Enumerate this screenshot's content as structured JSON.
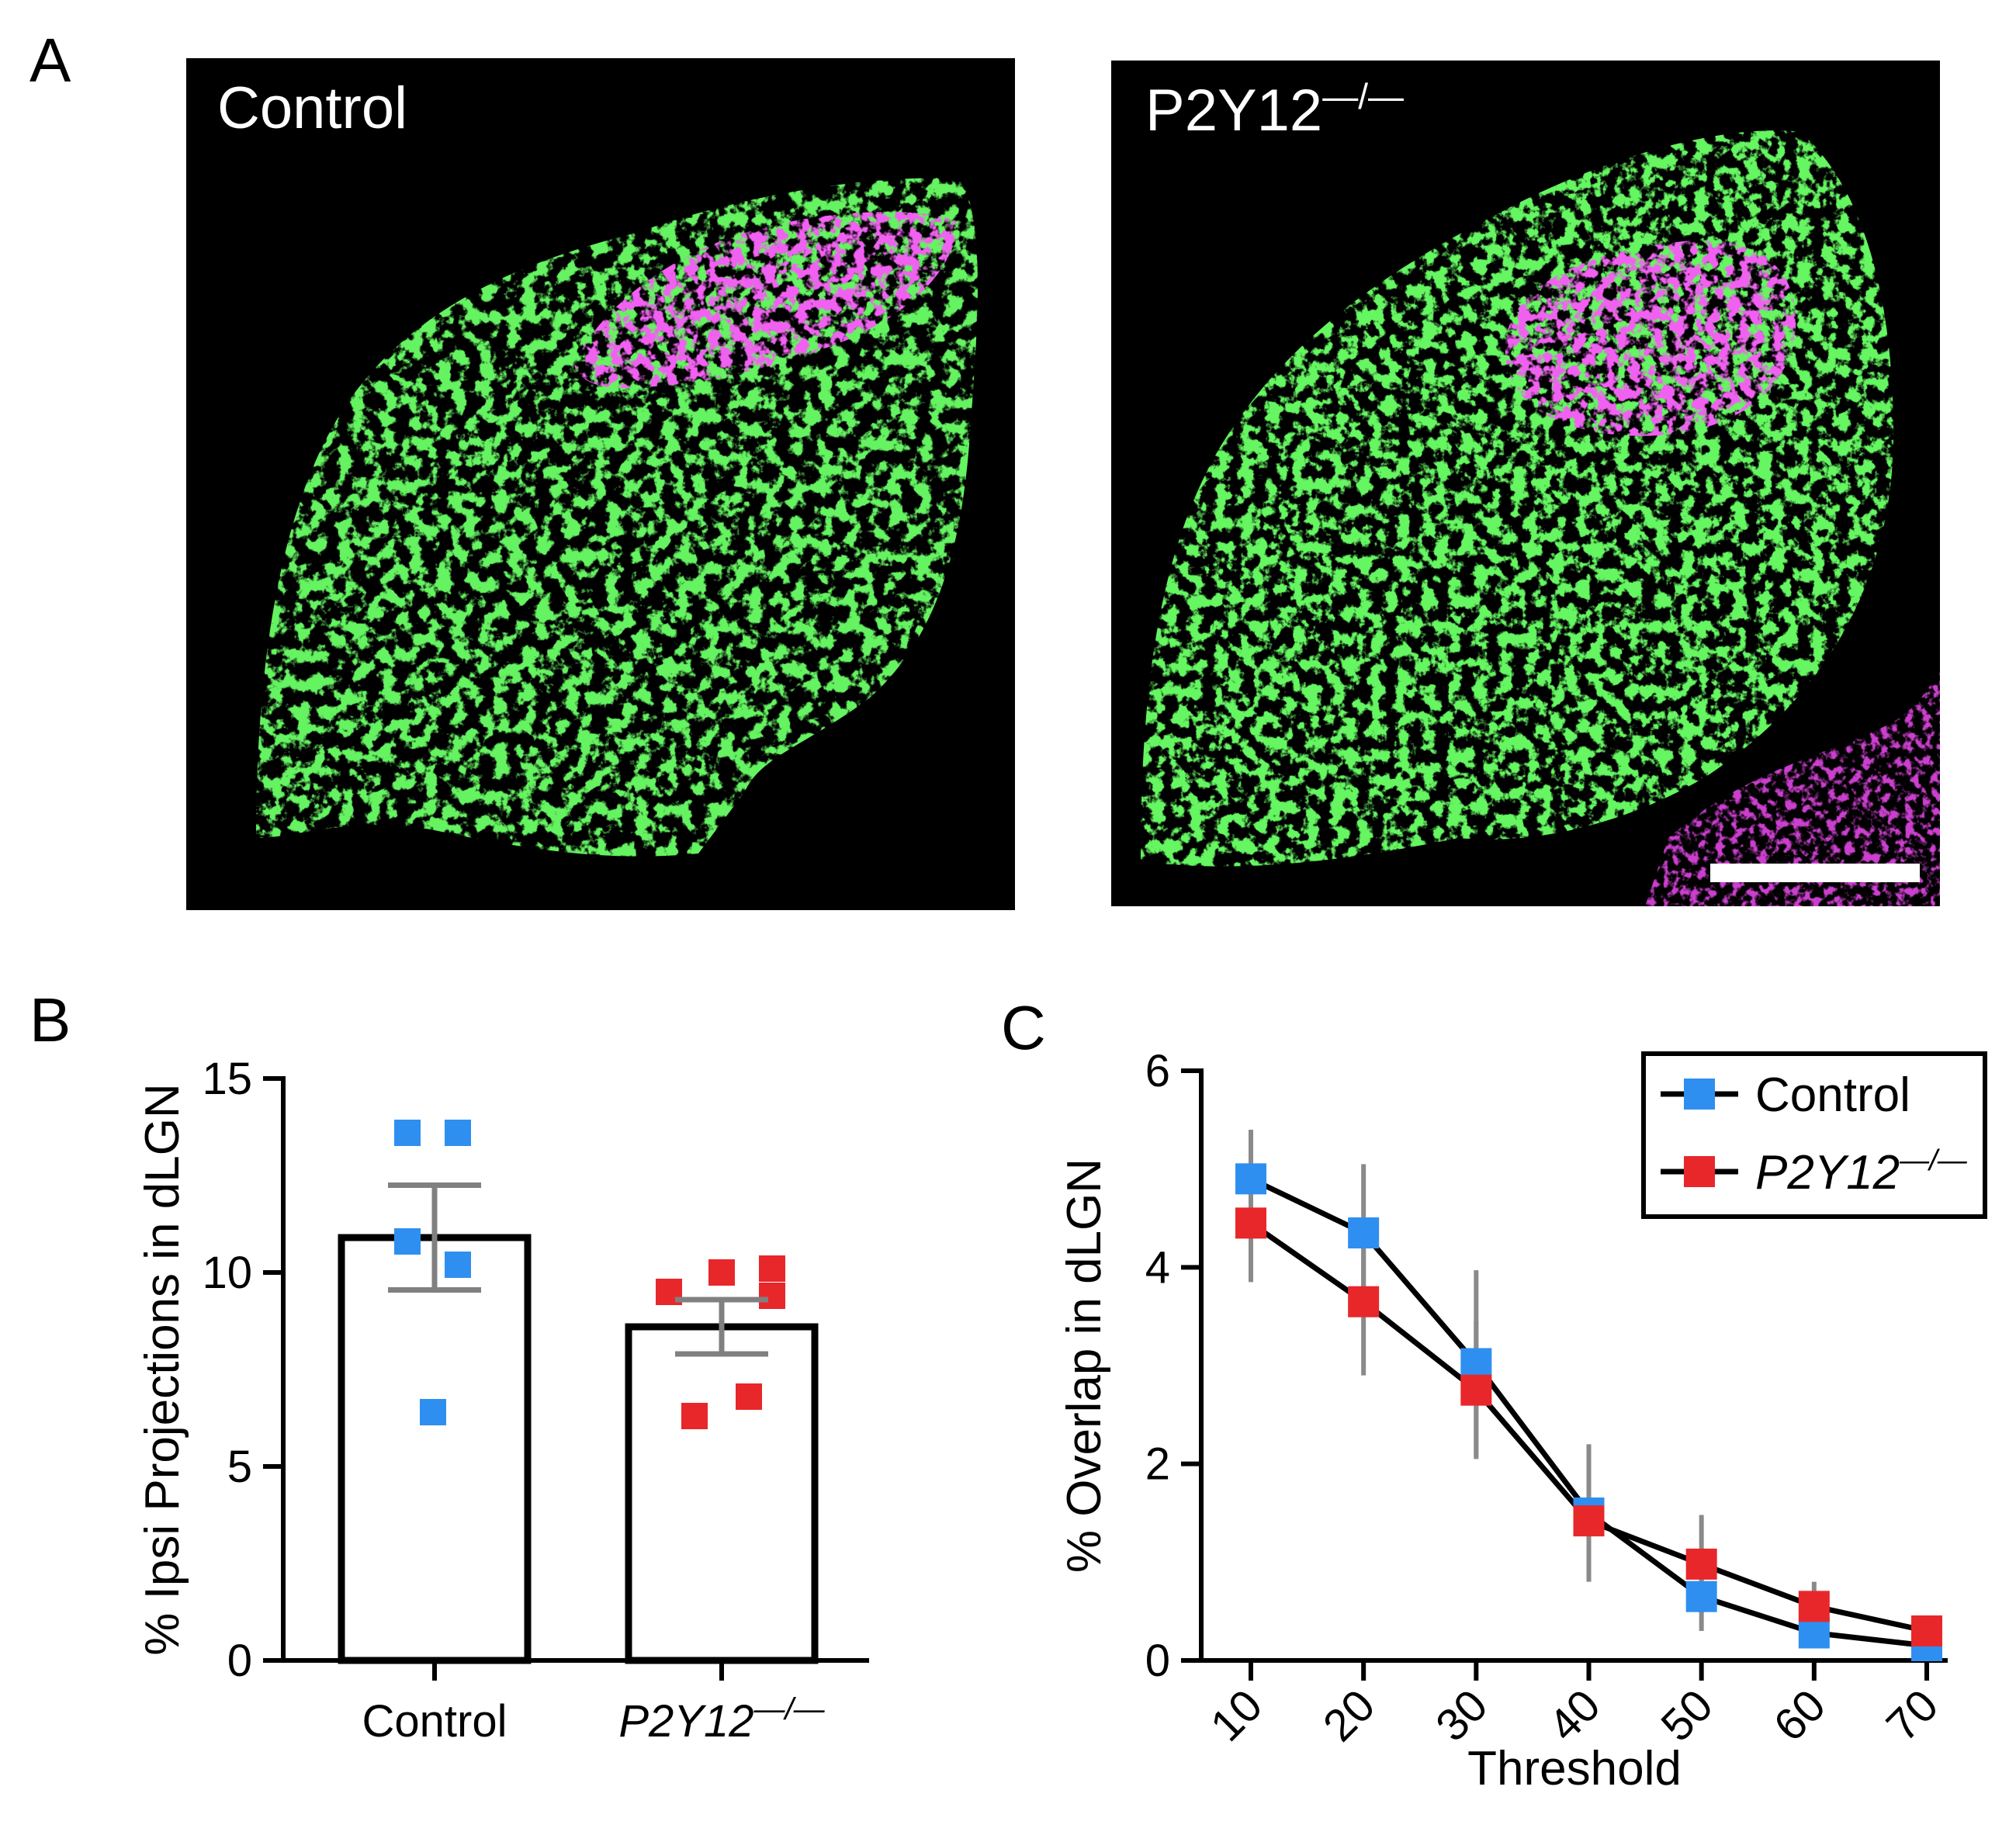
{
  "panels": {
    "a": {
      "letter": "A",
      "images": [
        {
          "label": "Control",
          "sup": ""
        },
        {
          "label": "P2Y12",
          "sup": "—/—"
        }
      ]
    },
    "b": {
      "letter": "B"
    },
    "c": {
      "letter": "C"
    }
  },
  "colors": {
    "control": "#2f8ff0",
    "p2y12": "#e8272b",
    "error_bar_b": "#808080",
    "error_bar_c": "#8a8a8a",
    "green_stain": "#22e61f",
    "magenta_stain": "#e020e0"
  },
  "chart_data": [
    {
      "type": "bar",
      "panel": "B",
      "xlabel": "",
      "ylabel": "% Ipsi Projections in dLGN",
      "ylim": [
        0,
        15
      ],
      "yticks": [
        "0",
        "5",
        "10",
        "15"
      ],
      "categories": [
        {
          "label": "Control",
          "sup": "",
          "italic": false
        },
        {
          "label": "P2Y12",
          "sup": "—/—",
          "italic": true
        }
      ],
      "values": [
        10.9,
        8.6
      ],
      "errors": [
        1.35,
        0.7
      ],
      "points": [
        {
          "series": "Control",
          "values": [
            13.6,
            13.6,
            10.8,
            10.2,
            6.4
          ]
        },
        {
          "series": "P2Y12—/—",
          "values": [
            9.5,
            10.0,
            10.1,
            9.4,
            6.8,
            6.3
          ]
        }
      ]
    },
    {
      "type": "line",
      "panel": "C",
      "xlabel": "Threshold",
      "ylabel": "% Overlap in dLGN",
      "x": [
        10,
        20,
        30,
        40,
        50,
        60,
        70
      ],
      "xticks": [
        "10",
        "20",
        "30",
        "40",
        "50",
        "60",
        "70"
      ],
      "ylim": [
        0,
        6
      ],
      "yticks": [
        "0",
        "2",
        "4",
        "6"
      ],
      "legend_position": "top-right",
      "series": [
        {
          "name": "Control",
          "sup": "",
          "italic": false,
          "values": [
            4.9,
            4.35,
            3.02,
            1.5,
            0.65,
            0.28,
            0.15
          ],
          "errors": [
            0.5,
            0.7,
            0.95,
            0.7,
            0.35,
            0.15,
            0.1
          ]
        },
        {
          "name": "P2Y12",
          "sup": "—/—",
          "italic": true,
          "values": [
            4.45,
            3.65,
            2.75,
            1.42,
            0.98,
            0.55,
            0.3
          ],
          "errors": [
            0.6,
            0.75,
            0.7,
            0.6,
            0.5,
            0.25,
            0.15
          ]
        }
      ]
    }
  ]
}
